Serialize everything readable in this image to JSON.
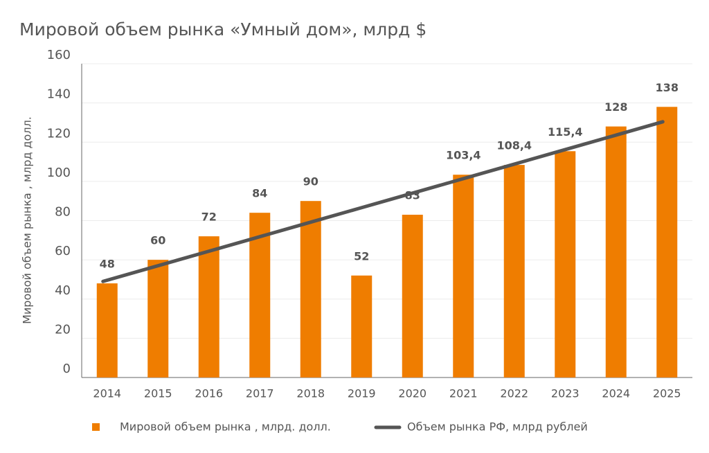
{
  "chart_data": {
    "type": "bar",
    "title": "Мировой объем рынка «Умный дом», млрд $",
    "y_label": "Мировой объем рынка , млрд долл.",
    "categories": [
      "2014",
      "2015",
      "2016",
      "2017",
      "2018",
      "2019",
      "2020",
      "2021",
      "2022",
      "2023",
      "2024",
      "2025"
    ],
    "series": [
      {
        "name": "Мировой объем рынка , млрд. долл.",
        "type": "bar",
        "color": "#ef7d00",
        "values": [
          48,
          60,
          72,
          84,
          90,
          52,
          83,
          103.4,
          108.4,
          115.4,
          128,
          138
        ],
        "value_labels": [
          "48",
          "60",
          "72",
          "84",
          "90",
          "52",
          "83",
          "103,4",
          "108,4",
          "115,4",
          "128",
          "138"
        ]
      },
      {
        "name": "Объем рынка РФ, млрд рублей",
        "type": "line",
        "color": "#555555",
        "values": [
          49,
          56.4,
          63.8,
          71.2,
          78.6,
          86,
          93.4,
          100.8,
          108.2,
          115.6,
          123,
          130.4
        ]
      }
    ],
    "ylim": [
      0,
      160
    ],
    "yticks": [
      0,
      20,
      40,
      60,
      80,
      100,
      120,
      140,
      160
    ],
    "grid": true
  }
}
